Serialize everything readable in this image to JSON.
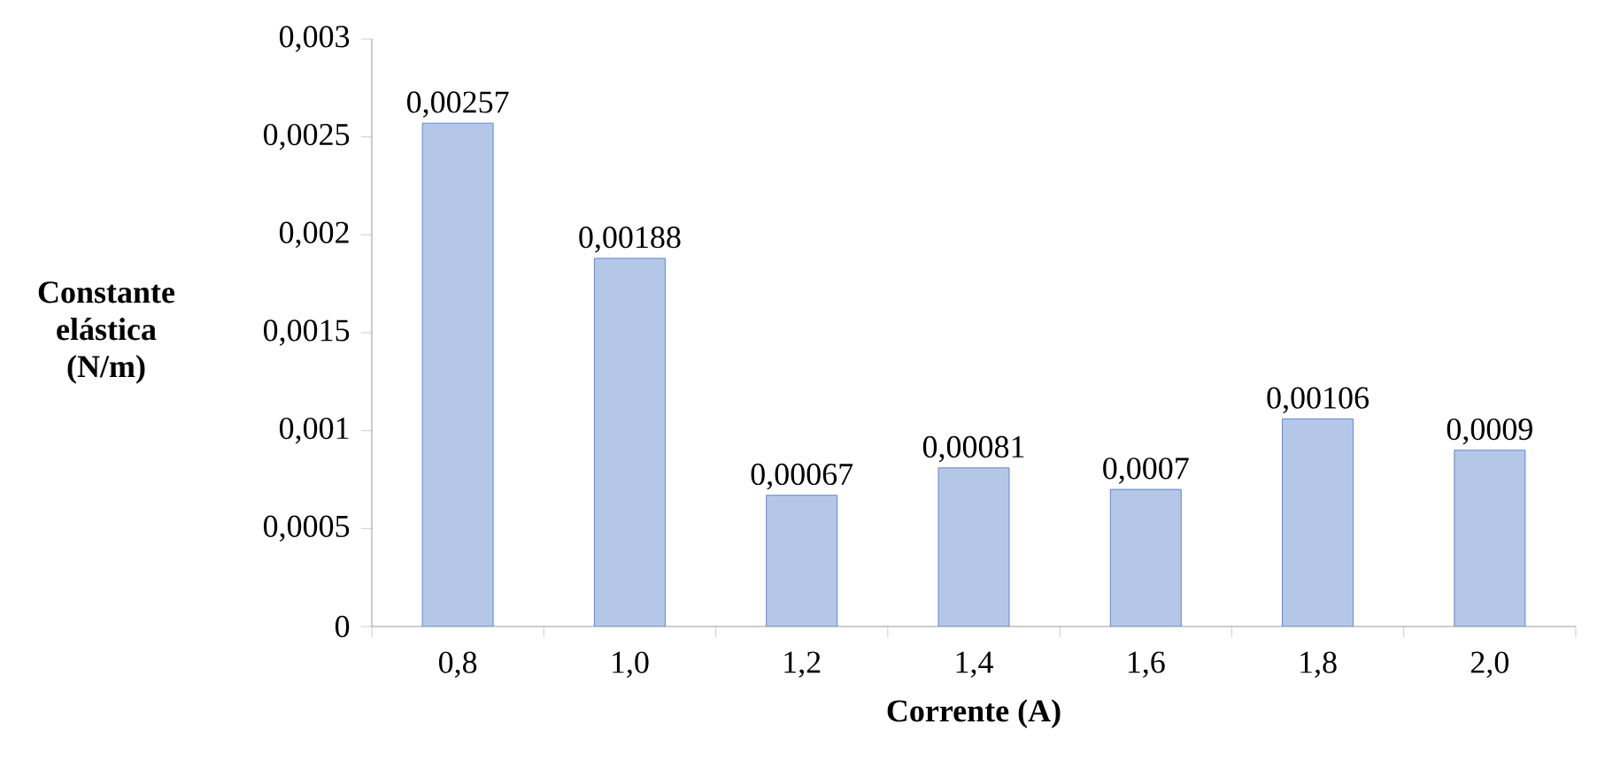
{
  "chart_data": {
    "type": "bar",
    "xlabel": "Corrente (A)",
    "ylabel": "Constante elástica (N/m)",
    "categories": [
      "0,8",
      "1,0",
      "1,2",
      "1,4",
      "1,6",
      "1,8",
      "2,0"
    ],
    "values": [
      0.00257,
      0.00188,
      0.00067,
      0.00081,
      0.0007,
      0.00106,
      0.0009
    ],
    "value_labels": [
      "0,00257",
      "0,00188",
      "0,00067",
      "0,00081",
      "0,0007",
      "0,00106",
      "0,0009"
    ],
    "color": "#b4c7e7",
    "ylim": [
      0,
      0.003
    ],
    "yticks": [
      0,
      {
        "value": 0.0005,
        "label": "0,0005"
      },
      {
        "value": 0.001,
        "label": "0,001"
      },
      {
        "value": 0.0015,
        "label": "0,0015"
      },
      {
        "value": 0.002,
        "label": "0,002"
      },
      {
        "value": 0.0025,
        "label": "0,0025"
      },
      {
        "value": 0.003,
        "label": "0,003"
      }
    ],
    "grid": false
  }
}
